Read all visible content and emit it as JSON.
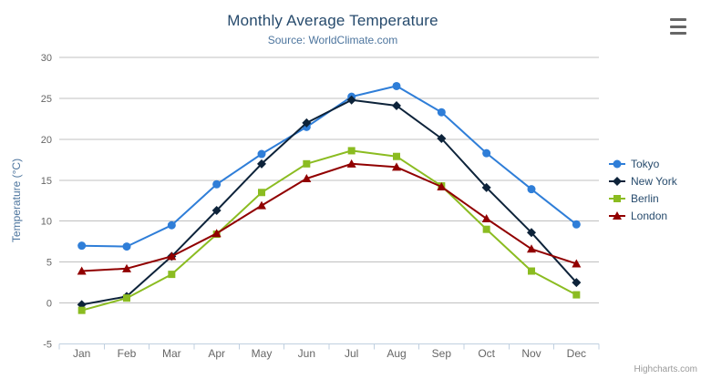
{
  "chart_data": {
    "type": "line",
    "title": "Monthly Average Temperature",
    "subtitle": "Source: WorldClimate.com",
    "categories": [
      "Jan",
      "Feb",
      "Mar",
      "Apr",
      "May",
      "Jun",
      "Jul",
      "Aug",
      "Sep",
      "Oct",
      "Nov",
      "Dec"
    ],
    "xlabel": "",
    "ylabel": "Temperature (°C)",
    "ylim": [
      -5,
      30
    ],
    "ytick_step": 5,
    "grid": true,
    "legend_position": "right",
    "series": [
      {
        "name": "Tokyo",
        "color": "#2f7ed8",
        "marker": "circle",
        "values": [
          7.0,
          6.9,
          9.5,
          14.5,
          18.2,
          21.5,
          25.2,
          26.5,
          23.3,
          18.3,
          13.9,
          9.6
        ]
      },
      {
        "name": "New York",
        "color": "#0d233a",
        "marker": "diamond",
        "values": [
          -0.2,
          0.8,
          5.7,
          11.3,
          17.0,
          22.0,
          24.8,
          24.1,
          20.1,
          14.1,
          8.6,
          2.5
        ]
      },
      {
        "name": "Berlin",
        "color": "#8bbc21",
        "marker": "square",
        "values": [
          -0.9,
          0.6,
          3.5,
          8.4,
          13.5,
          17.0,
          18.6,
          17.9,
          14.3,
          9.0,
          3.9,
          1.0
        ]
      },
      {
        "name": "London",
        "color": "#910000",
        "marker": "triangle",
        "values": [
          3.9,
          4.2,
          5.7,
          8.5,
          11.9,
          15.2,
          17.0,
          16.6,
          14.2,
          10.3,
          6.6,
          4.8
        ]
      }
    ]
  },
  "credit_label": "Highcharts.com",
  "colors": {
    "background": "#ffffff",
    "title_text": "#274b6d",
    "subtitle_text": "#4d759e",
    "axis_title_text": "#4d759e",
    "axis_label_text": "#666666",
    "gridline": "#c0c0c0",
    "axis_line": "#c0d0e0",
    "legend_text": "#274b6d",
    "credit_text": "#999999",
    "menu_icon": "#666666"
  }
}
